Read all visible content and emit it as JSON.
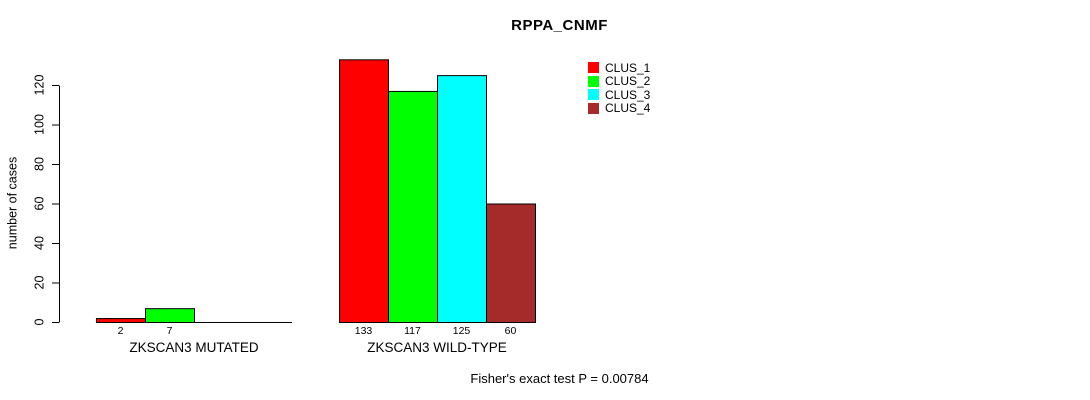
{
  "title": "RPPA_CNMF",
  "footer": "Fisher's exact test P = 0.00784",
  "y_axis": {
    "label": "number of cases",
    "ticks": [
      0,
      20,
      40,
      60,
      80,
      100,
      120
    ]
  },
  "legend": {
    "items": [
      {
        "label": "CLUS_1",
        "color": "#FF0000"
      },
      {
        "label": "CLUS_2",
        "color": "#00FF00"
      },
      {
        "label": "CLUS_3",
        "color": "#00FFFF"
      },
      {
        "label": "CLUS_4",
        "color": "#A52A2A"
      }
    ]
  },
  "chart_data": {
    "type": "bar",
    "title": "RPPA_CNMF",
    "xlabel": "",
    "ylabel": "number of cases",
    "ylim": [
      0,
      133
    ],
    "yticks": [
      0,
      20,
      40,
      60,
      80,
      100,
      120
    ],
    "grid": false,
    "legend_position": "right-top",
    "categories": [
      "ZKSCAN3 MUTATED",
      "ZKSCAN3 WILD-TYPE"
    ],
    "series": [
      {
        "name": "CLUS_1",
        "color": "#FF0000",
        "values": [
          2,
          133
        ]
      },
      {
        "name": "CLUS_2",
        "color": "#00FF00",
        "values": [
          7,
          117
        ]
      },
      {
        "name": "CLUS_3",
        "color": "#00FFFF",
        "values": [
          0,
          125
        ]
      },
      {
        "name": "CLUS_4",
        "color": "#A52A2A",
        "values": [
          0,
          60
        ]
      }
    ],
    "value_labels": [
      [
        "2",
        "7",
        "",
        ""
      ],
      [
        "133",
        "117",
        "125",
        "60"
      ]
    ],
    "annotation": "Fisher's exact test P = 0.00784"
  }
}
